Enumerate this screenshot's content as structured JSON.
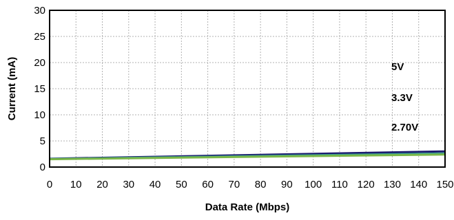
{
  "chart_data": {
    "type": "line",
    "xlabel": "Data Rate (Mbps)",
    "ylabel": "Current (mA)",
    "xlim": [
      0,
      150
    ],
    "ylim": [
      0,
      30
    ],
    "xticks": [
      0,
      10,
      20,
      30,
      40,
      50,
      60,
      70,
      80,
      90,
      100,
      110,
      120,
      130,
      140,
      150
    ],
    "yticks": [
      0,
      5,
      10,
      15,
      20,
      25,
      30
    ],
    "grid": true,
    "series": [
      {
        "name": "5V",
        "color": "#1a1a6e",
        "x": [
          0,
          150
        ],
        "y": [
          1.6,
          3.0
        ]
      },
      {
        "name": "3.3V",
        "color": "#3aa090",
        "x": [
          0,
          150
        ],
        "y": [
          1.55,
          2.6
        ]
      },
      {
        "name": "2.70V",
        "color": "#7ab648",
        "x": [
          0,
          150
        ],
        "y": [
          1.5,
          2.4
        ]
      }
    ],
    "series_labels": [
      "5V",
      "3.3V",
      "2.70V"
    ]
  }
}
